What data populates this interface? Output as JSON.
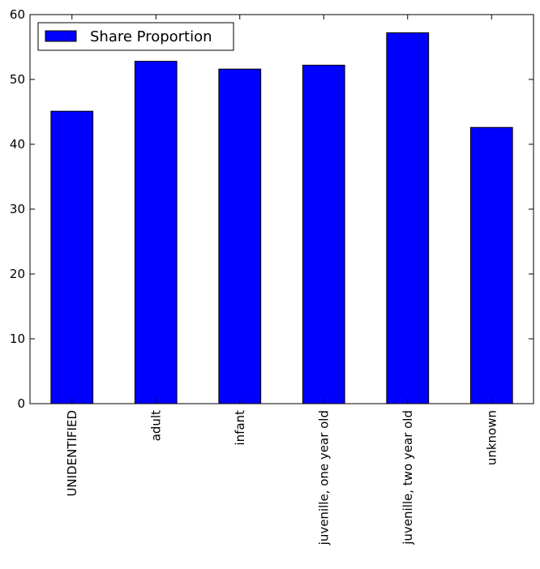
{
  "chart_data": {
    "type": "bar",
    "categories": [
      "UNIDENTIFIED",
      "adult",
      "infant",
      "juvenille, one year old",
      "juvenille, two year old",
      "unknown"
    ],
    "series": [
      {
        "name": "Share Proportion",
        "values": [
          45.1,
          52.8,
          51.6,
          52.2,
          57.2,
          42.6
        ],
        "color": "#0000ff"
      }
    ],
    "title": "",
    "xlabel": "",
    "ylabel": "",
    "ylim": [
      0,
      60
    ],
    "yticks": [
      0,
      10,
      20,
      30,
      40,
      50,
      60
    ],
    "grid": false,
    "legend": {
      "position": "top-left"
    }
  }
}
